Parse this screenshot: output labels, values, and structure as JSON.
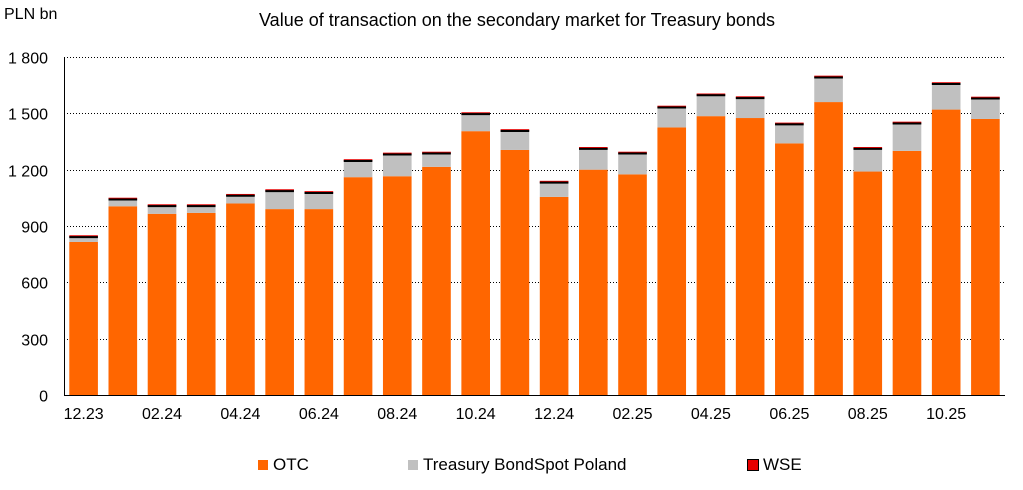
{
  "chart_data": {
    "type": "bar",
    "stacked": true,
    "title": "Value of transaction on the secondary market for Treasury bonds",
    "unit_label": "PLN bn",
    "ylim": [
      0,
      1800
    ],
    "y_ticks": [
      "0",
      "300",
      "600",
      "900",
      "1 200",
      "1 500",
      "1 800"
    ],
    "y_tick_values": [
      0,
      300,
      600,
      900,
      1200,
      1500,
      1800
    ],
    "grid": true,
    "legend_position": "bottom",
    "categories": [
      "12.23",
      "01.24",
      "02.24",
      "03.24",
      "04.24",
      "05.24",
      "06.24",
      "07.24",
      "08.24",
      "09.24",
      "10.24",
      "11.24",
      "12.24",
      "01.25",
      "02.25",
      "03.25",
      "04.25",
      "05.25",
      "06.25",
      "07.25",
      "08.25",
      "09.25",
      "10.25",
      "11.25"
    ],
    "x_tick_labels": [
      "12.23",
      "",
      "02.24",
      "",
      "04.24",
      "",
      "06.24",
      "",
      "08.24",
      "",
      "10.24",
      "",
      "12.24",
      "",
      "02.25",
      "",
      "04.25",
      "",
      "06.25",
      "",
      "08.25",
      "",
      "10.25",
      ""
    ],
    "series": [
      {
        "name": "OTC",
        "color": "#FF6600",
        "values": [
          815,
          1005,
          965,
          970,
          1020,
          990,
          990,
          1160,
          1165,
          1215,
          1405,
          1305,
          1055,
          1200,
          1175,
          1425,
          1485,
          1475,
          1340,
          1560,
          1190,
          1300,
          1520,
          1470
        ]
      },
      {
        "name": "Treasury BondSpot Poland",
        "color": "#C0C0C0",
        "values": [
          25,
          35,
          40,
          35,
          40,
          95,
          85,
          85,
          115,
          70,
          90,
          100,
          75,
          110,
          110,
          105,
          110,
          105,
          100,
          130,
          120,
          145,
          135,
          108
        ]
      },
      {
        "name": "WSE",
        "color": "#E60000",
        "values": [
          1,
          1,
          1,
          1,
          1,
          1,
          1,
          1,
          1,
          1,
          1,
          1,
          1,
          1,
          1,
          1,
          1,
          1,
          1,
          1,
          1,
          1,
          1,
          1
        ]
      }
    ]
  }
}
